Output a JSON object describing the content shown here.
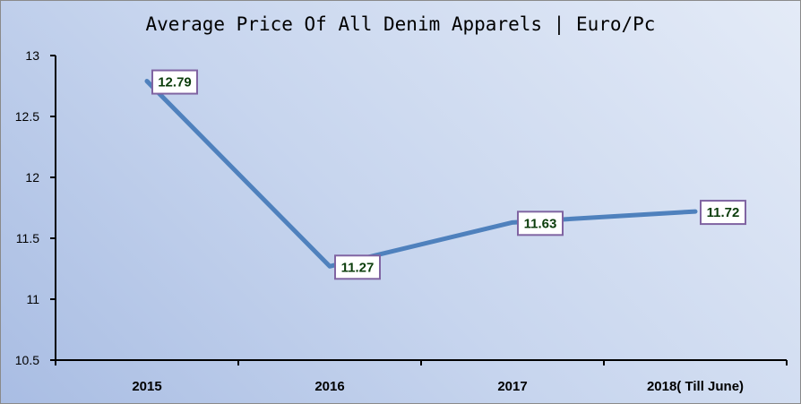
{
  "chart_data": {
    "type": "line",
    "title": "Average Price Of All Denim Apparels | Euro/Pc",
    "xlabel": "",
    "ylabel": "",
    "categories": [
      "2015",
      "2016",
      "2017",
      "2018( Till June)"
    ],
    "series": [
      {
        "values": [
          12.79,
          11.27,
          11.63,
          11.72
        ],
        "data_labels": [
          "12.79",
          "11.27",
          "11.63",
          "11.72"
        ]
      }
    ],
    "ylim": [
      10.5,
      13
    ],
    "yticks": [
      "13",
      "12.5",
      "12",
      "11.5",
      "11",
      "10.5"
    ],
    "grid": false,
    "legend": "none",
    "colors": {
      "line": "#4f81bd",
      "label_border": "#8064a2",
      "label_text": "#0b3d0b",
      "axis": "#000000"
    }
  }
}
